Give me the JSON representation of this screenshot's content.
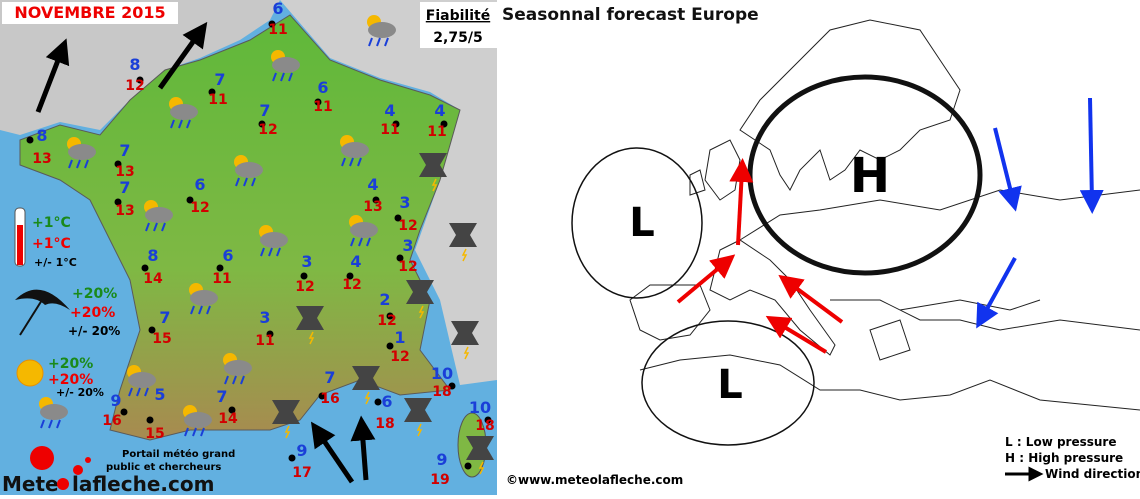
{
  "header": {
    "title": "NOVEMBRE 2015",
    "reliability_label": "Fiabilité",
    "reliability_value": "2,75/5"
  },
  "cities": [
    {
      "min": 6,
      "max": 11
    },
    {
      "min": 8,
      "max": 12
    },
    {
      "min": 7,
      "max": 11
    },
    {
      "min": 6,
      "max": 11
    },
    {
      "min": 7,
      "max": 12
    },
    {
      "min": 4,
      "max": 11
    },
    {
      "min": 4,
      "max": 11
    },
    {
      "min": 8,
      "max": 13
    },
    {
      "min": 7,
      "max": 13
    },
    {
      "min": 7,
      "max": 13
    },
    {
      "min": 6,
      "max": 12
    },
    {
      "min": 4,
      "max": 13
    },
    {
      "min": 3,
      "max": 12
    },
    {
      "min": 3,
      "max": 12
    },
    {
      "min": 8,
      "max": 14
    },
    {
      "min": 6,
      "max": 11
    },
    {
      "min": 3,
      "max": 12
    },
    {
      "min": 4,
      "max": 12
    },
    {
      "min": 2,
      "max": 12
    },
    {
      "min": 7,
      "max": 15
    },
    {
      "min": 3,
      "max": 11
    },
    {
      "min": 1,
      "max": 12
    },
    {
      "min": 10,
      "max": 18
    },
    {
      "min": 7,
      "max": 16
    },
    {
      "min": 5,
      "max": 15
    },
    {
      "min": 9,
      "max": 16
    },
    {
      "min": 7,
      "max": 14
    },
    {
      "min": 6,
      "max": 18
    },
    {
      "min": 10,
      "max": 18
    },
    {
      "min": 9,
      "max": 17
    },
    {
      "min": 9,
      "max": 19
    }
  ],
  "legend": {
    "temperature": [
      "+1°C",
      "+1°C",
      "+/- 1°C"
    ],
    "precipitation": [
      "+20%",
      "+20%",
      "+/- 20%"
    ],
    "sunshine": [
      "+20%",
      "+20%",
      "+/- 20%"
    ]
  },
  "footer": {
    "tagline": [
      "Portail météo grand",
      "public et chercheurs"
    ],
    "logo": [
      "Mete",
      "lafleche.com"
    ]
  },
  "europe": {
    "title": "Seasonnal forecast Europe",
    "centers": [
      "L",
      "H",
      "L"
    ],
    "key": [
      "L : Low pressure",
      "H : High pressure",
      "Wind direction"
    ],
    "credit": "©www.meteolafleche.com"
  }
}
